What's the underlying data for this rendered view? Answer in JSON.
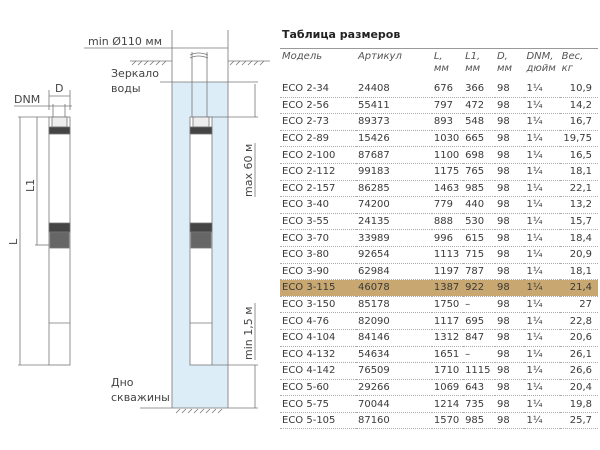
{
  "diagram": {
    "min_diameter": "min Ø110 мм",
    "water_level": [
      "Зеркало",
      "воды"
    ],
    "max_depth": "max 60 м",
    "min_bottom": "min 1,5 м",
    "well_bottom": [
      "Дно",
      "скважины"
    ],
    "dim_D": "D",
    "dim_DNM": "DNM",
    "dim_L": "L",
    "dim_L1": "L1",
    "water_color": "#dcedf7"
  },
  "table": {
    "title": "Таблица размеров",
    "headers": [
      [
        "Модель",
        ""
      ],
      [
        "Артикул",
        ""
      ],
      [
        "L,",
        "мм"
      ],
      [
        "L1,",
        "мм"
      ],
      [
        "D,",
        "мм"
      ],
      [
        "DNM,",
        "дюйм"
      ],
      [
        "Вес,",
        "кг"
      ]
    ],
    "highlight_color": "#c8a870",
    "highlight_row": "ECO 3-115",
    "rows": [
      [
        "ECO 2-34",
        "24408",
        "676",
        "366",
        "98",
        "1¼",
        "10,9"
      ],
      [
        "ECO 2-56",
        "55411",
        "797",
        "472",
        "98",
        "1¼",
        "14,2"
      ],
      [
        "ECO 2-73",
        "89373",
        "893",
        "548",
        "98",
        "1¼",
        "16,7"
      ],
      [
        "ECO 2-89",
        "15426",
        "1030",
        "665",
        "98",
        "1¼",
        "19,75"
      ],
      [
        "ECO 2-100",
        "87687",
        "1100",
        "698",
        "98",
        "1¼",
        "16,5"
      ],
      [
        "ECO 2-112",
        "99183",
        "1175",
        "765",
        "98",
        "1¼",
        "18,1"
      ],
      [
        "ECO 2-157",
        "86285",
        "1463",
        "985",
        "98",
        "1¼",
        "22,1"
      ],
      [
        "ECO 3-40",
        "74200",
        "779",
        "440",
        "98",
        "1¼",
        "13,2"
      ],
      [
        "ECO 3-55",
        "24135",
        "888",
        "530",
        "98",
        "1¼",
        "15,7"
      ],
      [
        "ECO 3-70",
        "33989",
        "996",
        "615",
        "98",
        "1¼",
        "18,4"
      ],
      [
        "ECO 3-80",
        "92654",
        "1113",
        "715",
        "98",
        "1¼",
        "20,9"
      ],
      [
        "ECO 3-90",
        "62984",
        "1197",
        "787",
        "98",
        "1¼",
        "18,1"
      ],
      [
        "ECO 3-115",
        "46078",
        "1387",
        "922",
        "98",
        "1¼",
        "21,4"
      ],
      [
        "ECO 3-150",
        "85178",
        "1750",
        "–",
        "98",
        "1¼",
        "27"
      ],
      [
        "ECO 4-76",
        "82090",
        "1117",
        "695",
        "98",
        "1¼",
        "22,8"
      ],
      [
        "ECO 4-104",
        "84146",
        "1312",
        "847",
        "98",
        "1¼",
        "20,6"
      ],
      [
        "ECO 4-132",
        "54634",
        "1651",
        "–",
        "98",
        "1¼",
        "26,1"
      ],
      [
        "ECO 4-142",
        "76509",
        "1710",
        "1115",
        "98",
        "1¼",
        "26,6"
      ],
      [
        "ECO 5-60",
        "29266",
        "1069",
        "643",
        "98",
        "1¼",
        "20,4"
      ],
      [
        "ECO 5-75",
        "70044",
        "1214",
        "735",
        "98",
        "1¼",
        "19,8"
      ],
      [
        "ECO 5-105",
        "87160",
        "1570",
        "985",
        "98",
        "1¼",
        "25,7"
      ]
    ]
  }
}
